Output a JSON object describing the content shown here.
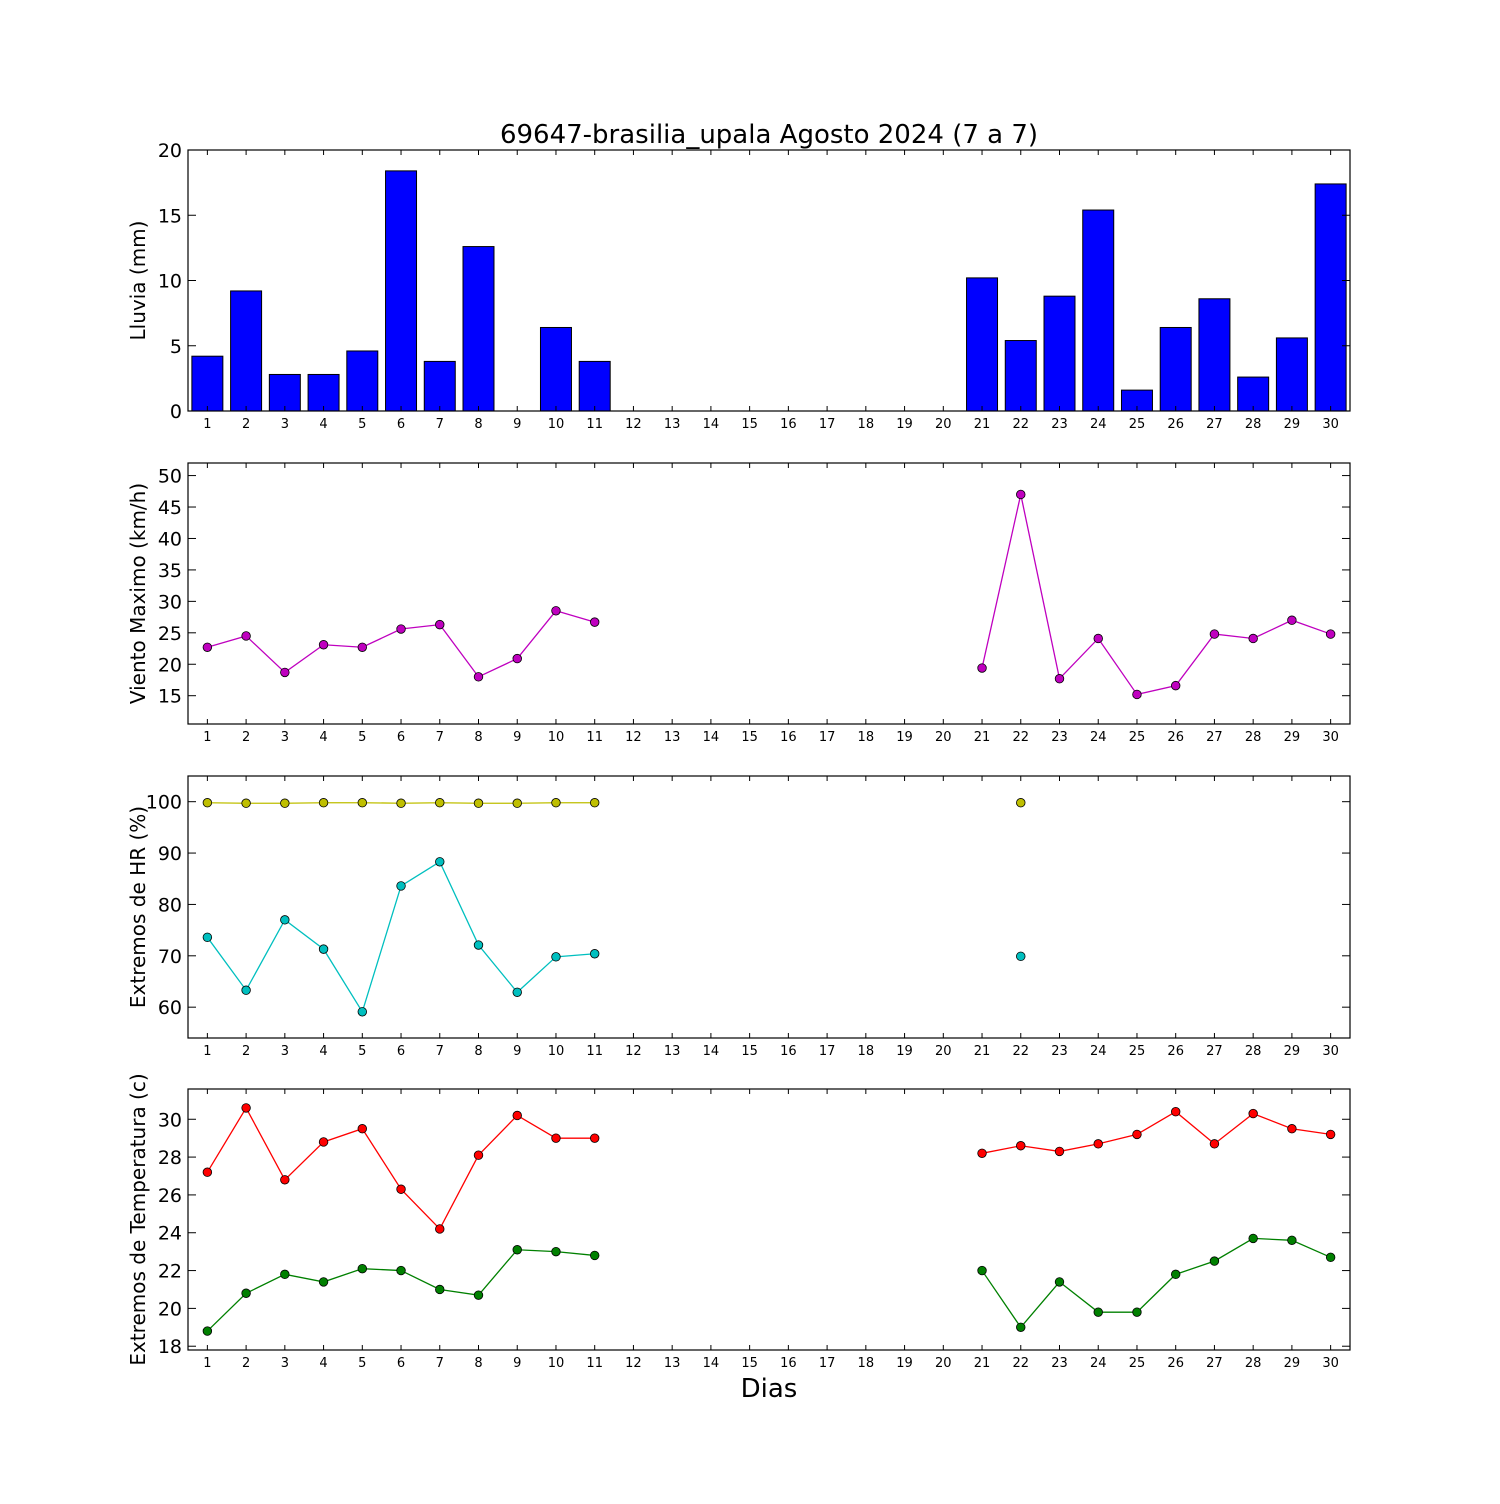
{
  "title": "69647-brasilia_upala Agosto 2024  (7 a 7)",
  "xlabel": "Dias",
  "chart_data": [
    {
      "id": "rain",
      "type": "bar",
      "ylabel": "Lluvia (mm)",
      "ylim": [
        0,
        20
      ],
      "yticks": [
        0,
        5,
        10,
        15,
        20
      ],
      "xlim": [
        0.5,
        30.5
      ],
      "xticks": [
        1,
        2,
        3,
        4,
        5,
        6,
        7,
        8,
        9,
        10,
        11,
        12,
        13,
        14,
        15,
        16,
        17,
        18,
        19,
        20,
        21,
        22,
        23,
        24,
        25,
        26,
        27,
        28,
        29,
        30
      ],
      "grid": false,
      "series": [
        {
          "color": "#0000ff",
          "x": [
            1,
            2,
            3,
            4,
            5,
            6,
            7,
            8,
            10,
            11,
            21,
            22,
            23,
            24,
            25,
            26,
            27,
            28,
            29,
            30
          ],
          "values": [
            4.2,
            9.2,
            2.8,
            2.8,
            4.6,
            18.4,
            3.8,
            12.6,
            6.4,
            3.8,
            10.2,
            5.4,
            8.8,
            15.4,
            1.6,
            6.4,
            8.6,
            2.6,
            5.6,
            17.4
          ]
        }
      ]
    },
    {
      "id": "wind",
      "type": "line",
      "ylabel": "Viento Maximo (km/h)",
      "ylim": [
        10.5,
        52
      ],
      "yticks": [
        15,
        20,
        25,
        30,
        35,
        40,
        45,
        50
      ],
      "xlim": [
        0.5,
        30.5
      ],
      "xticks": [
        1,
        2,
        3,
        4,
        5,
        6,
        7,
        8,
        9,
        10,
        11,
        12,
        13,
        14,
        15,
        16,
        17,
        18,
        19,
        20,
        21,
        22,
        23,
        24,
        25,
        26,
        27,
        28,
        29,
        30
      ],
      "grid": false,
      "series": [
        {
          "color": "#bf00bf",
          "x": [
            1,
            2,
            3,
            4,
            5,
            6,
            7,
            8,
            9,
            10,
            11,
            null,
            21,
            22,
            23,
            24,
            25,
            26,
            27,
            28,
            29,
            30
          ],
          "y": [
            22.7,
            24.5,
            18.7,
            23.1,
            22.7,
            25.6,
            26.3,
            18.0,
            20.9,
            28.5,
            26.7,
            null,
            19.4,
            47.0,
            17.7,
            24.1,
            15.2,
            16.6,
            24.8,
            24.1,
            27.0,
            24.8
          ]
        }
      ]
    },
    {
      "id": "humidity",
      "type": "line",
      "ylabel": "Extremos de HR (%)",
      "ylim": [
        54,
        105
      ],
      "yticks": [
        60,
        70,
        80,
        90,
        100
      ],
      "xlim": [
        0.5,
        30.5
      ],
      "xticks": [
        1,
        2,
        3,
        4,
        5,
        6,
        7,
        8,
        9,
        10,
        11,
        12,
        13,
        14,
        15,
        16,
        17,
        18,
        19,
        20,
        21,
        22,
        23,
        24,
        25,
        26,
        27,
        28,
        29,
        30
      ],
      "grid": false,
      "series": [
        {
          "color": "#bfbf00",
          "x": [
            1,
            2,
            3,
            4,
            5,
            6,
            7,
            8,
            9,
            10,
            11,
            null,
            22
          ],
          "y": [
            99.8,
            99.7,
            99.7,
            99.8,
            99.8,
            99.7,
            99.8,
            99.7,
            99.7,
            99.8,
            99.8,
            null,
            99.8
          ]
        },
        {
          "color": "#00bfbf",
          "x": [
            1,
            2,
            3,
            4,
            5,
            6,
            7,
            8,
            9,
            10,
            11,
            null,
            22
          ],
          "y": [
            73.6,
            63.3,
            77.0,
            71.3,
            59.1,
            83.6,
            88.3,
            72.1,
            62.9,
            69.8,
            70.4,
            null,
            69.9
          ]
        }
      ]
    },
    {
      "id": "temperature",
      "type": "line",
      "ylabel": "Extremos de Temperatura (c)",
      "ylim": [
        17.8,
        31.6
      ],
      "yticks": [
        18,
        20,
        22,
        24,
        26,
        28,
        30
      ],
      "xlim": [
        0.5,
        30.5
      ],
      "xticks": [
        1,
        2,
        3,
        4,
        5,
        6,
        7,
        8,
        9,
        10,
        11,
        12,
        13,
        14,
        15,
        16,
        17,
        18,
        19,
        20,
        21,
        22,
        23,
        24,
        25,
        26,
        27,
        28,
        29,
        30
      ],
      "grid": false,
      "series": [
        {
          "color": "#ff0000",
          "x": [
            1,
            2,
            3,
            4,
            5,
            6,
            7,
            8,
            9,
            10,
            11,
            null,
            21,
            22,
            23,
            24,
            25,
            26,
            27,
            28,
            29,
            30
          ],
          "y": [
            27.2,
            30.6,
            26.8,
            28.8,
            29.5,
            26.3,
            24.2,
            28.1,
            30.2,
            29.0,
            29.0,
            null,
            28.2,
            28.6,
            28.3,
            28.7,
            29.2,
            30.4,
            28.7,
            30.3,
            29.5,
            29.2
          ]
        },
        {
          "color": "#008000",
          "x": [
            1,
            2,
            3,
            4,
            5,
            6,
            7,
            8,
            9,
            10,
            11,
            null,
            21,
            22,
            23,
            24,
            25,
            26,
            27,
            28,
            29,
            30
          ],
          "y": [
            18.8,
            20.8,
            21.8,
            21.4,
            22.1,
            22.0,
            21.0,
            20.7,
            23.1,
            23.0,
            22.8,
            null,
            22.0,
            19.0,
            21.4,
            19.8,
            19.8,
            21.8,
            22.5,
            23.7,
            23.6,
            22.7
          ]
        }
      ]
    }
  ]
}
